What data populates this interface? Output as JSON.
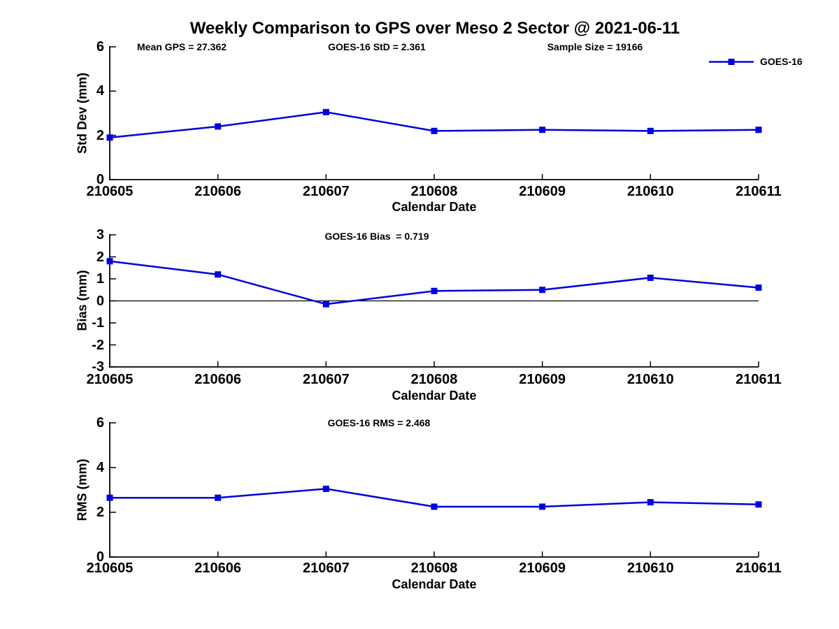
{
  "title": "Weekly Comparison to GPS over Meso 2 Sector @ 2021-06-11",
  "legend": {
    "label": "GOES-16",
    "position": "top-right-outside"
  },
  "colors": {
    "line": "#0000DD",
    "axis": "#000000",
    "text": "#000000",
    "background": "#FFFFFF"
  },
  "chart_data": [
    {
      "type": "line",
      "name": "std-dev-vs-date",
      "annotations": [
        "Mean GPS = 27.362",
        "GOES-16 StD = 2.361",
        "Sample Size = 19166"
      ],
      "stats": {
        "mean_gps": 27.362,
        "goes16_std": 2.361,
        "sample_size": 19166
      },
      "categories": [
        "210605",
        "210606",
        "210607",
        "210608",
        "210609",
        "210610",
        "210611"
      ],
      "series": [
        {
          "name": "GOES-16",
          "values": [
            1.9,
            2.4,
            3.05,
            2.2,
            2.25,
            2.2,
            2.25
          ]
        }
      ],
      "xlabel": "Calendar Date",
      "ylabel": "Std Dev (mm)",
      "ylim": [
        0,
        6
      ],
      "yticks": [
        0,
        2,
        4,
        6
      ],
      "grid": false,
      "zero_line": false,
      "marker": "square"
    },
    {
      "type": "line",
      "name": "bias-vs-date",
      "annotations": [
        "GOES-16 Bias  = 0.719"
      ],
      "stats": {
        "goes16_bias": 0.719
      },
      "categories": [
        "210605",
        "210606",
        "210607",
        "210608",
        "210609",
        "210610",
        "210611"
      ],
      "series": [
        {
          "name": "GOES-16",
          "values": [
            1.8,
            1.2,
            -0.15,
            0.45,
            0.5,
            1.05,
            0.6
          ]
        }
      ],
      "xlabel": "Calendar Date",
      "ylabel": "Bias (mm)",
      "ylim": [
        -3,
        3
      ],
      "yticks": [
        3,
        2,
        1,
        0,
        -1,
        -2,
        -3
      ],
      "grid": false,
      "zero_line": true,
      "marker": "square"
    },
    {
      "type": "line",
      "name": "rms-vs-date",
      "annotations": [
        "GOES-16 RMS = 2.468"
      ],
      "stats": {
        "goes16_rms": 2.468
      },
      "categories": [
        "210605",
        "210606",
        "210607",
        "210608",
        "210609",
        "210610",
        "210611"
      ],
      "series": [
        {
          "name": "GOES-16",
          "values": [
            2.65,
            2.65,
            3.05,
            2.25,
            2.25,
            2.45,
            2.35
          ]
        }
      ],
      "xlabel": "Calendar Date",
      "ylabel": "RMS (mm)",
      "ylim": [
        0,
        6
      ],
      "yticks": [
        0,
        2,
        4,
        6
      ],
      "grid": false,
      "zero_line": false,
      "marker": "square"
    }
  ]
}
